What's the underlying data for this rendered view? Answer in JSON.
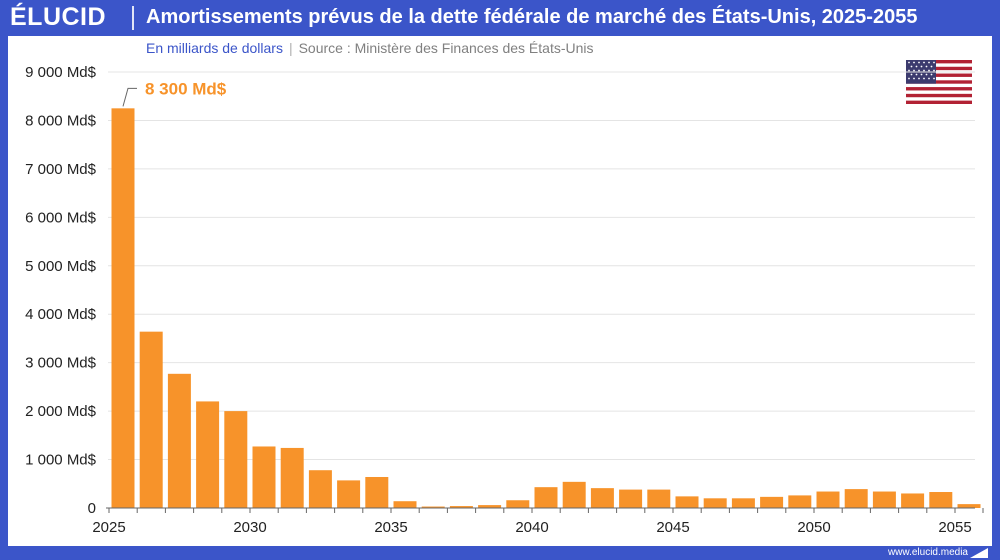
{
  "header": {
    "logo": "ÉLUCID",
    "title": "Amortissements prévus de la dette fédérale de marché des États-Unis, 2025-2055"
  },
  "subtitle": {
    "unit": "En milliards de dollars",
    "separator": "|",
    "source": "Source : Ministère des Finances des États-Unis"
  },
  "footer": {
    "url": "www.elucid.media"
  },
  "flag": {
    "icon": "us-flag-icon"
  },
  "colors": {
    "bar": "#f7932a",
    "brand": "#3b55c9"
  },
  "chart_data": {
    "type": "bar",
    "title": "Amortissements prévus de la dette fédérale de marché des États-Unis, 2025-2055",
    "xlabel": "",
    "ylabel": "",
    "ylim": [
      0,
      9000
    ],
    "y_ticks": [
      0,
      1000,
      2000,
      3000,
      4000,
      5000,
      6000,
      7000,
      8000,
      9000
    ],
    "y_tick_labels": [
      "0",
      "1 000 Md$",
      "2 000 Md$",
      "3 000 Md$",
      "4 000 Md$",
      "5 000 Md$",
      "6 000 Md$",
      "7 000 Md$",
      "8 000 Md$",
      "9 000 Md$"
    ],
    "x_tick_labels": [
      "2025",
      "2030",
      "2035",
      "2040",
      "2045",
      "2050",
      "2055"
    ],
    "categories": [
      2025,
      2026,
      2027,
      2028,
      2029,
      2030,
      2031,
      2032,
      2033,
      2034,
      2035,
      2036,
      2037,
      2038,
      2039,
      2040,
      2041,
      2042,
      2043,
      2044,
      2045,
      2046,
      2047,
      2048,
      2049,
      2050,
      2051,
      2052,
      2053,
      2054,
      2055
    ],
    "values": [
      8250,
      3640,
      2770,
      2200,
      2000,
      1270,
      1240,
      780,
      570,
      640,
      140,
      30,
      40,
      60,
      160,
      430,
      540,
      410,
      380,
      380,
      240,
      200,
      200,
      230,
      260,
      340,
      390,
      340,
      300,
      330,
      80
    ],
    "grid": true,
    "legend": "none",
    "annotation": {
      "label": "8 300 Md$",
      "category": 2025
    }
  }
}
